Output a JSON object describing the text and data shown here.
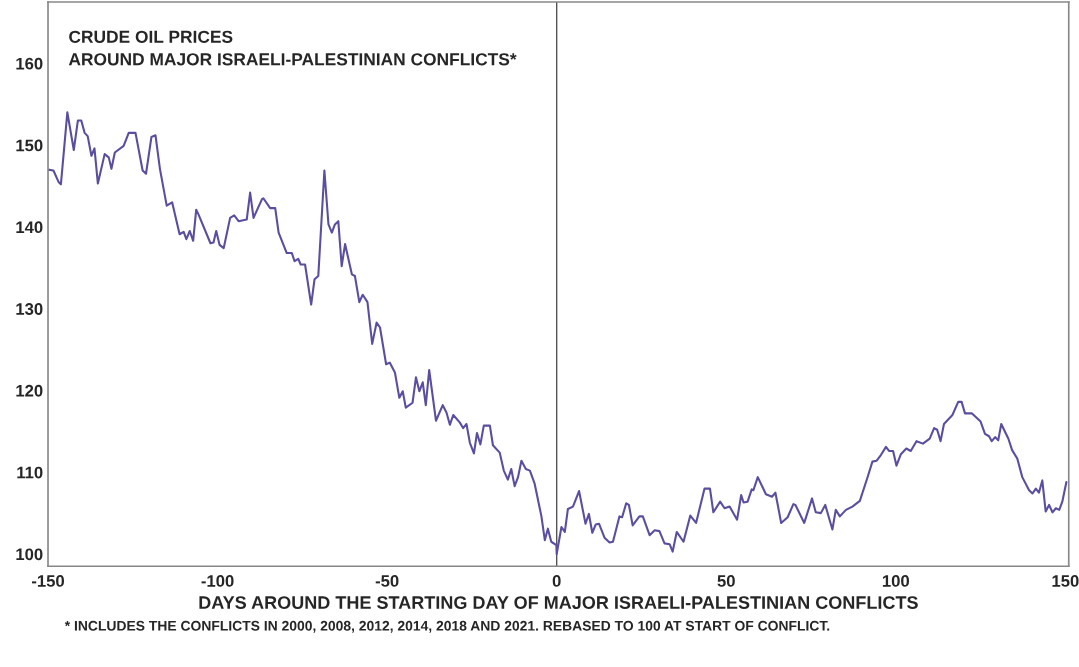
{
  "chart_data": {
    "type": "line",
    "title": "CRUDE OIL PRICES\nAROUND MAJOR ISRAELI-PALESTINIAN CONFLICTS*",
    "xlabel": "DAYS AROUND THE STARTING DAY OF MAJOR ISRAELI-PALESTINIAN CONFLICTS",
    "annotations": [
      "* INCLUDES THE CONFLICTS IN 2000, 2008, 2012, 2014, 2018 AND 2021. REBASED TO 100 AT START OF CONFLICT."
    ],
    "x": [
      -150,
      -148.4,
      -146.9,
      -146.2,
      -144.3,
      -142.4,
      -141.2,
      -140.2,
      -139.2,
      -138.3,
      -137.2,
      -136.3,
      -135.3,
      -133.3,
      -132.1,
      -131.3,
      -130.3,
      -127.7,
      -126.2,
      -124.2,
      -122.1,
      -121.1,
      -119.5,
      -118.3,
      -117.0,
      -115.0,
      -113.4,
      -111.2,
      -110.0,
      -109.2,
      -108.2,
      -107.2,
      -106.3,
      -105.6,
      -102.1,
      -101.2,
      -100.4,
      -99.4,
      -98.2,
      -96.3,
      -95.1,
      -93.8,
      -91.4,
      -90.4,
      -89.4,
      -86.9,
      -86.5,
      -84.5,
      -83.0,
      -82.0,
      -79.6,
      -78.1,
      -77.3,
      -76.2,
      -75.5,
      -74.2,
      -72.4,
      -71.4,
      -70.3,
      -68.5,
      -67.3,
      -66.3,
      -65.4,
      -64.4,
      -63.4,
      -62.4,
      -60.4,
      -59.5,
      -58.2,
      -57.2,
      -55.8,
      -54.4,
      -53.1,
      -52.1,
      -50.3,
      -49.2,
      -47.7,
      -46.4,
      -45.4,
      -44.5,
      -42.5,
      -41.5,
      -40.5,
      -39.5,
      -38.6,
      -37.6,
      -35.6,
      -33.6,
      -32.5,
      -31.5,
      -30.5,
      -28.6,
      -27.6,
      -26.6,
      -25.6,
      -24.4,
      -23.5,
      -22.5,
      -21.5,
      -19.7,
      -18.8,
      -16.8,
      -15.6,
      -14.4,
      -13.4,
      -12.4,
      -11.4,
      -10.4,
      -9.1,
      -7.9,
      -6.5,
      -4.5,
      -3.5,
      -2.6,
      -1.6,
      -0.1,
      0,
      1.4,
      2.4,
      3.3,
      4.8,
      6.6,
      8.5,
      9.5,
      10.5,
      11.5,
      12.5,
      14.1,
      15.6,
      16.6,
      18.5,
      19.3,
      20.5,
      21.3,
      22.4,
      24.4,
      25.4,
      27.4,
      28.9,
      30.3,
      31.8,
      33.3,
      34.2,
      35.4,
      37.4,
      39.4,
      41.1,
      43.6,
      45.2,
      46.2,
      48.2,
      49.5,
      51.0,
      53.2,
      54.4,
      55.1,
      56.3,
      57.5,
      58.0,
      59.3,
      61.7,
      63.5,
      64.5,
      66.2,
      68.1,
      69.8,
      70.4,
      73.0,
      75.3,
      76.4,
      77.9,
      79.2,
      81.3,
      82.3,
      83.5,
      85.3,
      87.2,
      89.4,
      91.6,
      93.1,
      94.3,
      95.6,
      97.1,
      98.0,
      99.2,
      100.2,
      101.5,
      103.1,
      104.4,
      106.1,
      108.0,
      110.0,
      111.3,
      112.2,
      113.2,
      114.2,
      116.7,
      118.4,
      119.4,
      120.4,
      122.4,
      125.0,
      126.3,
      127.5,
      128.3,
      129.3,
      130.2,
      131.1,
      133.2,
      134.3,
      135.8,
      137.3,
      139.3,
      140.3,
      141.3,
      142.2,
      143.2,
      144.2,
      145.2,
      146.2,
      147.2,
      148.2,
      149.1,
      150.3
    ],
    "series": [
      {
        "color": "#5b4ea0",
        "values": [
          147.0,
          146.9,
          145.5,
          145.2,
          154.0,
          149.4,
          153.0,
          153.0,
          151.5,
          151.1,
          148.7,
          149.6,
          145.3,
          148.9,
          148.5,
          147.1,
          149.1,
          149.9,
          151.5,
          151.5,
          146.9,
          146.5,
          151.0,
          151.2,
          147.1,
          142.6,
          143.0,
          139.1,
          139.4,
          138.5,
          139.5,
          138.3,
          142.1,
          141.5,
          138.0,
          138.1,
          139.5,
          137.8,
          137.4,
          141.1,
          141.4,
          140.7,
          140.9,
          144.2,
          141.1,
          143.4,
          143.5,
          142.3,
          142.3,
          139.3,
          136.8,
          136.8,
          135.8,
          136.1,
          135.4,
          135.4,
          130.5,
          133.6,
          134.0,
          146.9,
          140.3,
          139.3,
          140.3,
          140.7,
          135.2,
          137.9,
          134.2,
          134.0,
          130.8,
          131.7,
          130.8,
          125.7,
          128.3,
          127.7,
          123.2,
          123.4,
          122.2,
          119.1,
          119.9,
          117.9,
          118.5,
          121.6,
          119.9,
          121.0,
          118.2,
          122.5,
          116.3,
          118.2,
          117.3,
          115.8,
          117.0,
          116.1,
          115.4,
          115.9,
          113.6,
          112.3,
          114.8,
          113.4,
          115.7,
          115.7,
          113.3,
          112.4,
          110.2,
          109.1,
          110.4,
          108.3,
          109.4,
          111.4,
          110.4,
          110.2,
          108.6,
          104.6,
          101.7,
          103.1,
          101.5,
          101.1,
          100.0,
          103.3,
          102.7,
          105.5,
          105.8,
          107.7,
          103.7,
          104.9,
          102.6,
          103.6,
          103.7,
          102.0,
          101.4,
          101.5,
          104.6,
          104.5,
          106.2,
          106.0,
          103.5,
          104.6,
          104.6,
          102.3,
          102.9,
          102.8,
          101.3,
          101.2,
          100.3,
          102.7,
          101.5,
          104.7,
          103.8,
          108.0,
          108.0,
          105.1,
          106.4,
          105.6,
          105.8,
          104.2,
          107.2,
          106.3,
          106.4,
          107.9,
          107.8,
          109.4,
          107.3,
          107.0,
          107.5,
          103.8,
          104.5,
          106.1,
          106.0,
          103.8,
          106.8,
          105.1,
          105.0,
          106.0,
          103.0,
          105.4,
          104.6,
          105.4,
          105.8,
          106.5,
          109.3,
          111.3,
          111.4,
          112.1,
          113.1,
          112.6,
          112.6,
          110.8,
          112.2,
          112.9,
          112.6,
          113.8,
          113.5,
          114.1,
          115.4,
          115.2,
          113.8,
          115.9,
          117.0,
          118.6,
          118.6,
          117.2,
          117.2,
          116.2,
          114.7,
          114.4,
          113.8,
          114.3,
          113.9,
          115.9,
          114.1,
          112.7,
          111.7,
          109.4,
          107.8,
          107.4,
          108.0,
          107.5,
          109.0,
          105.2,
          106.0,
          105.1,
          105.6,
          105.4,
          106.4,
          108.8
        ]
      }
    ],
    "xlim": [
      -150,
      151
    ],
    "xticks": [
      -150,
      -100,
      -50,
      0,
      50,
      100,
      150
    ],
    "ylim": [
      98.5,
      167.5
    ],
    "yticks": [
      100,
      110,
      120,
      130,
      140,
      150,
      160
    ],
    "ref_lines": [
      {
        "axis": "x",
        "value": 0,
        "color": "#555555"
      }
    ],
    "grid": false,
    "legend": false
  }
}
